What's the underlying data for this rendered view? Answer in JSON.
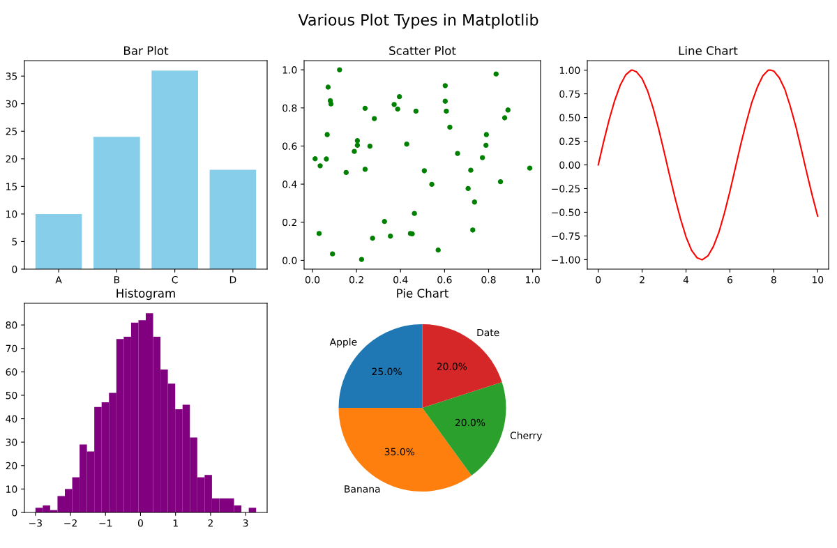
{
  "chart_data": [
    {
      "type": "other",
      "title": "Various Plot Types in Matplotlib"
    },
    {
      "type": "bar",
      "title": "Bar Plot",
      "categories": [
        "A",
        "B",
        "C",
        "D"
      ],
      "values": [
        10,
        24,
        36,
        18
      ],
      "color": "#87ceeb",
      "ylim": [
        0,
        37.8
      ],
      "yticks": [
        0,
        5,
        10,
        15,
        20,
        25,
        30,
        35
      ]
    },
    {
      "type": "scatter",
      "title": "Scatter Plot",
      "marker": "circle",
      "color": "#008000",
      "x": [
        0.123,
        0.071,
        0.081,
        0.084,
        0.012,
        0.035,
        0.063,
        0.067,
        0.03,
        0.091,
        0.153,
        0.19,
        0.204,
        0.204,
        0.239,
        0.239,
        0.261,
        0.281,
        0.223,
        0.273,
        0.327,
        0.354,
        0.371,
        0.387,
        0.395,
        0.428,
        0.47,
        0.463,
        0.445,
        0.453,
        0.508,
        0.542,
        0.571,
        0.603,
        0.603,
        0.608,
        0.624,
        0.659,
        0.707,
        0.719,
        0.728,
        0.736,
        0.772,
        0.788,
        0.79,
        0.834,
        0.854,
        0.873,
        0.888,
        0.987
      ],
      "values": [
        1.0,
        0.909,
        0.838,
        0.821,
        0.533,
        0.496,
        0.532,
        0.66,
        0.141,
        0.034,
        0.461,
        0.572,
        0.628,
        0.604,
        0.798,
        0.478,
        0.599,
        0.744,
        0.005,
        0.116,
        0.204,
        0.127,
        0.818,
        0.794,
        0.859,
        0.61,
        0.783,
        0.246,
        0.141,
        0.139,
        0.47,
        0.399,
        0.054,
        0.917,
        0.835,
        0.783,
        0.699,
        0.561,
        0.377,
        0.473,
        0.159,
        0.306,
        0.539,
        0.604,
        0.66,
        0.978,
        0.413,
        0.748,
        0.789,
        0.484
      ],
      "xlim": [
        -0.038,
        1.036
      ],
      "ylim": [
        -0.046,
        1.048
      ],
      "xticks": [
        {
          "value": 0,
          "label": "0.0"
        },
        {
          "value": 0.2,
          "label": "0.2"
        },
        {
          "value": 0.4,
          "label": "0.4"
        },
        {
          "value": 0.6,
          "label": "0.6"
        },
        {
          "value": 0.8,
          "label": "0.8"
        },
        {
          "value": 1.0,
          "label": "1.0"
        }
      ],
      "yticks": [
        {
          "value": 0,
          "label": "0.0"
        },
        {
          "value": 0.2,
          "label": "0.2"
        },
        {
          "value": 0.4,
          "label": "0.4"
        },
        {
          "value": 0.6,
          "label": "0.6"
        },
        {
          "value": 0.8,
          "label": "0.8"
        },
        {
          "value": 1.0,
          "label": "1.0"
        }
      ]
    },
    {
      "type": "line",
      "title": "Line Chart",
      "color": "#ff0000",
      "line_style": "solid",
      "x": [
        0,
        0.25,
        0.5,
        0.75,
        1,
        1.25,
        1.5,
        1.57,
        1.75,
        2,
        2.25,
        2.5,
        2.75,
        3,
        3.25,
        3.5,
        3.75,
        4,
        4.25,
        4.5,
        4.71,
        4.75,
        5,
        5.25,
        5.5,
        5.75,
        6,
        6.25,
        6.5,
        6.75,
        7,
        7.25,
        7.5,
        7.75,
        7.85,
        8,
        8.25,
        8.5,
        8.75,
        9,
        9.25,
        9.5,
        9.75,
        10
      ],
      "values": [
        0,
        0.25,
        0.48,
        0.68,
        0.84,
        0.95,
        1.0,
        1.0,
        0.98,
        0.91,
        0.78,
        0.6,
        0.38,
        0.14,
        -0.11,
        -0.35,
        -0.57,
        -0.76,
        -0.9,
        -0.98,
        -1.0,
        -1.0,
        -0.96,
        -0.86,
        -0.71,
        -0.51,
        -0.28,
        -0.03,
        0.22,
        0.45,
        0.66,
        0.82,
        0.94,
        1.0,
        1.0,
        0.99,
        0.92,
        0.8,
        0.62,
        0.41,
        0.17,
        -0.08,
        -0.32,
        -0.54
      ],
      "xlim": [
        -0.5,
        10.5
      ],
      "ylim": [
        -1.1,
        1.1
      ],
      "xticks": [
        0,
        2,
        4,
        6,
        8,
        10
      ],
      "yticks": [
        {
          "value": -1,
          "label": "−1.00"
        },
        {
          "value": -0.75,
          "label": "−0.75"
        },
        {
          "value": -0.5,
          "label": "−0.50"
        },
        {
          "value": -0.25,
          "label": "−0.25"
        },
        {
          "value": 0,
          "label": "0.00"
        },
        {
          "value": 0.25,
          "label": "0.25"
        },
        {
          "value": 0.5,
          "label": "0.50"
        },
        {
          "value": 0.75,
          "label": "0.75"
        },
        {
          "value": 1,
          "label": "1.00"
        }
      ]
    },
    {
      "type": "histogram",
      "title": "Histogram",
      "color": "#800080",
      "bins": [
        -3.0,
        -2.79,
        -2.58,
        -2.37,
        -2.16,
        -1.95,
        -1.74,
        -1.53,
        -1.32,
        -1.11,
        -0.9,
        -0.69,
        -0.48,
        -0.27,
        -0.06,
        0.15,
        0.36,
        0.57,
        0.78,
        0.99,
        1.2,
        1.41,
        1.62,
        1.83,
        2.04,
        2.25,
        2.46,
        2.67,
        2.88,
        3.09,
        3.3
      ],
      "values": [
        2,
        3,
        1,
        7,
        10,
        15,
        29,
        26,
        45,
        47,
        51,
        74,
        75,
        81,
        82,
        85,
        75,
        61,
        55,
        44,
        46,
        32,
        15,
        16,
        6,
        6,
        6,
        3,
        0,
        2
      ],
      "xlim": [
        -3.315,
        3.615
      ],
      "ylim": [
        0,
        89.25
      ],
      "xticks": [
        {
          "value": -3,
          "label": "−3"
        },
        {
          "value": -2,
          "label": "−2"
        },
        {
          "value": -1,
          "label": "−1"
        },
        0,
        1,
        2,
        3
      ],
      "yticks": [
        0,
        10,
        20,
        30,
        40,
        50,
        60,
        70,
        80
      ]
    },
    {
      "type": "pie",
      "title": "Pie Chart",
      "categories": [
        "Apple",
        "Banana",
        "Cherry",
        "Date"
      ],
      "values": [
        25,
        35,
        20,
        20
      ],
      "colors": [
        "#1f77b4",
        "#ff7f0e",
        "#2ca02c",
        "#d62728"
      ],
      "value_labels": [
        "25.0%",
        "35.0%",
        "20.0%",
        "20.0%"
      ]
    }
  ]
}
